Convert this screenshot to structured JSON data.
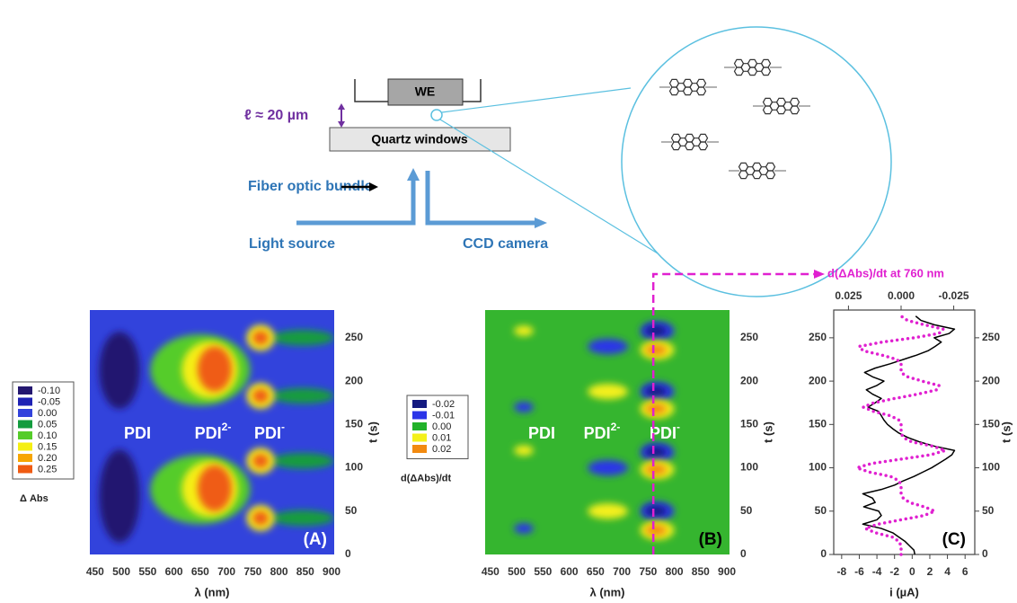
{
  "diagram": {
    "electrode": "WE",
    "path_length": "ℓ ≈ 20 µm",
    "window": "Quartz windows",
    "fiber": "Fiber optic bundle",
    "source": "Light source",
    "detector": "CCD camera"
  },
  "chart_data": [
    {
      "type": "heatmap",
      "panel_label": "(A)",
      "panel_label_color": "#ffffff",
      "xlabel": "λ (nm)",
      "ylabel": "t (s)",
      "xlim": [
        440,
        905
      ],
      "xticks": [
        450,
        500,
        550,
        600,
        650,
        700,
        750,
        800,
        850,
        900
      ],
      "ylim": [
        0,
        282
      ],
      "yticks": [
        0,
        50,
        100,
        150,
        200,
        250
      ],
      "background": "#3243dc",
      "colorbar": {
        "title": "Δ Abs",
        "levels": [
          {
            "value": -0.1,
            "label": "-0.10",
            "color": "#241770"
          },
          {
            "value": -0.05,
            "label": "-0.05",
            "color": "#1f22b4"
          },
          {
            "value": 0,
            "label": "0.00",
            "color": "#3243dc"
          },
          {
            "value": 0.05,
            "label": "0.05",
            "color": "#139c3e"
          },
          {
            "value": 0.1,
            "label": "0.10",
            "color": "#55cc2a"
          },
          {
            "value": 0.15,
            "label": "0.15",
            "color": "#f5ef12"
          },
          {
            "value": 0.2,
            "label": "0.20",
            "color": "#f7a600"
          },
          {
            "value": 0.25,
            "label": "0.25",
            "color": "#ef5b12"
          }
        ]
      },
      "annotations": [
        {
          "text": "PDI"
        },
        {
          "text": "PDI",
          "sup": "2-"
        },
        {
          "text": "PDI",
          "sup": "-"
        }
      ],
      "blobs": [
        {
          "x": [
            458,
            535
          ],
          "y": [
            168,
            257
          ],
          "value": -0.1
        },
        {
          "x": [
            458,
            535
          ],
          "y": [
            14,
            121
          ],
          "value": -0.1
        },
        {
          "x": [
            555,
            745
          ],
          "y": [
            172,
            254
          ],
          "value": 0.1
        },
        {
          "x": [
            615,
            722
          ],
          "y": [
            180,
            246
          ],
          "value": 0.15
        },
        {
          "x": [
            645,
            710
          ],
          "y": [
            188,
            240
          ],
          "value": 0.25
        },
        {
          "x": [
            555,
            745
          ],
          "y": [
            35,
            115
          ],
          "value": 0.1
        },
        {
          "x": [
            615,
            722
          ],
          "y": [
            43,
            108
          ],
          "value": 0.15
        },
        {
          "x": [
            645,
            710
          ],
          "y": [
            50,
            103
          ],
          "value": 0.25
        },
        {
          "x": [
            785,
            905
          ],
          "y": [
            241,
            259
          ],
          "value": 0.05
        },
        {
          "x": [
            738,
            792
          ],
          "y": [
            235,
            265
          ],
          "value": 0.15
        },
        {
          "x": [
            750,
            780
          ],
          "y": [
            242,
            258
          ],
          "value": 0.25
        },
        {
          "x": [
            785,
            905
          ],
          "y": [
            174,
            192
          ],
          "value": 0.05
        },
        {
          "x": [
            738,
            792
          ],
          "y": [
            168,
            198
          ],
          "value": 0.15
        },
        {
          "x": [
            750,
            780
          ],
          "y": [
            175,
            191
          ],
          "value": 0.25
        },
        {
          "x": [
            785,
            905
          ],
          "y": [
            99,
            117
          ],
          "value": 0.05
        },
        {
          "x": [
            738,
            792
          ],
          "y": [
            93,
            123
          ],
          "value": 0.15
        },
        {
          "x": [
            750,
            780
          ],
          "y": [
            100,
            116
          ],
          "value": 0.25
        },
        {
          "x": [
            785,
            905
          ],
          "y": [
            33,
            51
          ],
          "value": 0.05
        },
        {
          "x": [
            738,
            792
          ],
          "y": [
            27,
            57
          ],
          "value": 0.15
        },
        {
          "x": [
            750,
            780
          ],
          "y": [
            34,
            50
          ],
          "value": 0.25
        }
      ]
    },
    {
      "type": "heatmap",
      "panel_label": "(B)",
      "panel_label_color": "#000000",
      "xlabel": "λ (nm)",
      "ylabel": "t (s)",
      "xlim": [
        440,
        905
      ],
      "xticks": [
        450,
        500,
        550,
        600,
        650,
        700,
        750,
        800,
        850,
        900
      ],
      "ylim": [
        0,
        282
      ],
      "yticks": [
        0,
        50,
        100,
        150,
        200,
        250
      ],
      "background": "#35b52f",
      "colorbar": {
        "title": "d(ΔAbs)/dt",
        "levels": [
          {
            "value": -0.02,
            "label": "-0.02",
            "color": "#141a80"
          },
          {
            "value": -0.01,
            "label": "-0.01",
            "color": "#2a34e8"
          },
          {
            "value": 0,
            "label": "0.00",
            "color": "#22b22a"
          },
          {
            "value": 0.01,
            "label": "0.01",
            "color": "#f4f01a"
          },
          {
            "value": 0.02,
            "label": "0.02",
            "color": "#f28a10"
          }
        ]
      },
      "annotations": [
        {
          "text": "PDI"
        },
        {
          "text": "PDI",
          "sup": "2-"
        },
        {
          "text": "PDI",
          "sup": "-"
        }
      ],
      "guide": {
        "x": 760,
        "label": "d(ΔAbs)/dt at 760 nm",
        "color": "#e020d0"
      },
      "blobs": [
        {
          "x": [
            735,
            800
          ],
          "y": [
            247,
            269
          ],
          "value": -0.01
        },
        {
          "x": [
            745,
            785
          ],
          "y": [
            252,
            264
          ],
          "value": -0.02
        },
        {
          "x": [
            735,
            800
          ],
          "y": [
            177,
            199
          ],
          "value": -0.01
        },
        {
          "x": [
            745,
            785
          ],
          "y": [
            182,
            194
          ],
          "value": -0.02
        },
        {
          "x": [
            735,
            800
          ],
          "y": [
            107,
            129
          ],
          "value": -0.01
        },
        {
          "x": [
            745,
            785
          ],
          "y": [
            112,
            124
          ],
          "value": -0.02
        },
        {
          "x": [
            735,
            800
          ],
          "y": [
            39,
            61
          ],
          "value": -0.01
        },
        {
          "x": [
            745,
            785
          ],
          "y": [
            44,
            56
          ],
          "value": -0.02
        },
        {
          "x": [
            735,
            800
          ],
          "y": [
            225,
            247
          ],
          "value": 0.01
        },
        {
          "x": [
            745,
            785
          ],
          "y": [
            230,
            242
          ],
          "value": 0.02
        },
        {
          "x": [
            735,
            800
          ],
          "y": [
            157,
            179
          ],
          "value": 0.01
        },
        {
          "x": [
            745,
            785
          ],
          "y": [
            162,
            174
          ],
          "value": 0.02
        },
        {
          "x": [
            735,
            800
          ],
          "y": [
            87,
            109
          ],
          "value": 0.01
        },
        {
          "x": [
            745,
            785
          ],
          "y": [
            92,
            104
          ],
          "value": 0.02
        },
        {
          "x": [
            735,
            800
          ],
          "y": [
            17,
            39
          ],
          "value": 0.01
        },
        {
          "x": [
            745,
            785
          ],
          "y": [
            22,
            34
          ],
          "value": 0.02
        },
        {
          "x": [
            635,
            712
          ],
          "y": [
            231,
            249
          ],
          "value": -0.01
        },
        {
          "x": [
            635,
            712
          ],
          "y": [
            91,
            109
          ],
          "value": -0.01
        },
        {
          "x": [
            635,
            712
          ],
          "y": [
            179,
            197
          ],
          "value": 0.01
        },
        {
          "x": [
            635,
            712
          ],
          "y": [
            41,
            59
          ],
          "value": 0.01
        },
        {
          "x": [
            495,
            532
          ],
          "y": [
            252,
            264
          ],
          "value": 0.01
        },
        {
          "x": [
            495,
            532
          ],
          "y": [
            114,
            126
          ],
          "value": 0.01
        },
        {
          "x": [
            495,
            532
          ],
          "y": [
            164,
            176
          ],
          "value": -0.01
        },
        {
          "x": [
            495,
            532
          ],
          "y": [
            24,
            36
          ],
          "value": -0.01
        }
      ]
    },
    {
      "type": "line",
      "panel_label": "(C)",
      "panel_label_color": "#000000",
      "xlabel": "i (µA)",
      "ylabel": "t (s)",
      "xlim": [
        -8.9,
        7.1
      ],
      "xticks": [
        -8,
        -6,
        -4,
        -2,
        0,
        2,
        4,
        6
      ],
      "x2lim": [
        0.032,
        -0.035
      ],
      "x2ticks": [
        {
          "value": 0.025,
          "label": "0.025"
        },
        {
          "value": 0,
          "label": "0.000"
        },
        {
          "value": -0.025,
          "label": "-0.025"
        }
      ],
      "ylim": [
        0,
        282
      ],
      "yticks": [
        0,
        50,
        100,
        150,
        200,
        250
      ],
      "y": [
        0,
        5,
        10,
        15,
        20,
        25,
        30,
        35,
        40,
        45,
        50,
        55,
        60,
        65,
        70,
        75,
        80,
        85,
        90,
        95,
        100,
        105,
        110,
        115,
        120,
        125,
        130,
        135,
        140,
        145,
        150,
        155,
        160,
        165,
        170,
        175,
        180,
        185,
        190,
        195,
        200,
        205,
        210,
        215,
        220,
        225,
        230,
        235,
        240,
        245,
        250,
        255,
        260,
        265,
        270,
        275
      ],
      "series": [
        {
          "color": "#000000",
          "values": [
            0.3,
            0.2,
            -0.3,
            -0.8,
            -1.5,
            -2.2,
            -3.5,
            -5.6,
            -4,
            -3.5,
            -3.8,
            -5.5,
            -4.2,
            -4.5,
            -5.6,
            -3.5,
            -2,
            -1,
            0.2,
            1.2,
            2.2,
            3,
            3.8,
            4.5,
            4.8,
            2.5,
            0.8,
            -0.5,
            -1.5,
            -2.2,
            -2.8,
            -3.2,
            -3.5,
            -3.8,
            -5,
            -4.2,
            -3.5,
            -4.5,
            -5.2,
            -4,
            -3.2,
            -4.5,
            -5.4,
            -4.2,
            -2.5,
            -1,
            0.5,
            1.8,
            2.6,
            3.3,
            2.5,
            4.2,
            4.8,
            2.5,
            1,
            0.4
          ]
        },
        {
          "color": "#e020d0",
          "axis": "x2",
          "values": [
            0,
            0,
            0,
            0.001,
            0.004,
            0.012,
            0.017,
            0.011,
            0,
            -0.011,
            -0.016,
            -0.011,
            -0.004,
            -0.001,
            0,
            0,
            0,
            0.001,
            0.005,
            0.015,
            0.021,
            0.014,
            0,
            -0.014,
            -0.021,
            -0.015,
            -0.005,
            -0.001,
            0,
            0,
            0,
            0.001,
            0.005,
            0.013,
            0.018,
            0.013,
            0.003,
            -0.008,
            -0.017,
            -0.018,
            -0.01,
            -0.003,
            0,
            0,
            0,
            0.002,
            0.009,
            0.018,
            0.02,
            0.009,
            -0.006,
            -0.018,
            -0.02,
            -0.011,
            -0.003,
            0
          ]
        }
      ]
    }
  ]
}
